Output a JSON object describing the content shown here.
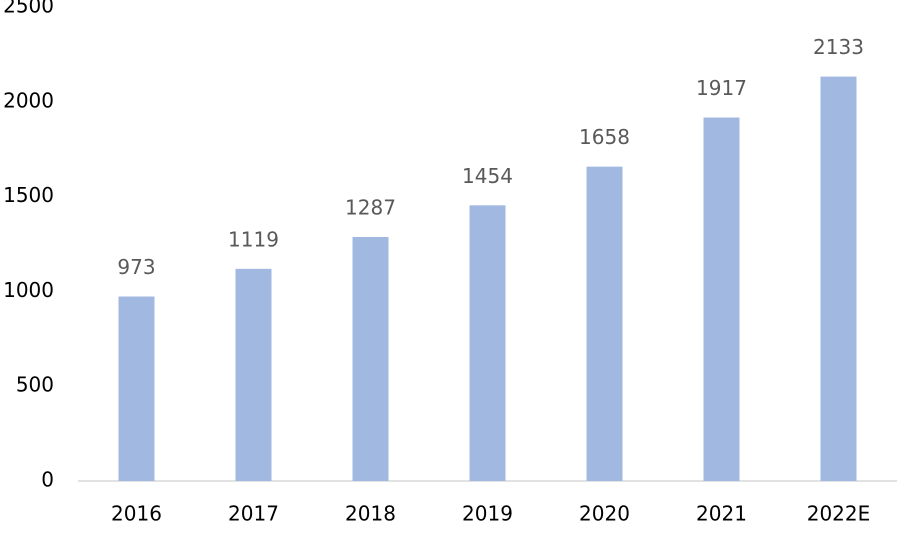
{
  "chart_data": {
    "type": "bar",
    "categories": [
      "2016",
      "2017",
      "2018",
      "2019",
      "2020",
      "2021",
      "2022E"
    ],
    "values": [
      973,
      1119,
      1287,
      1454,
      1658,
      1917,
      2133
    ],
    "color": "#a1b8e0",
    "ylim": [
      0,
      2500
    ],
    "yticks": [
      0,
      500,
      1000,
      1500,
      2000,
      2500
    ],
    "grid": false,
    "data_labels": true
  }
}
